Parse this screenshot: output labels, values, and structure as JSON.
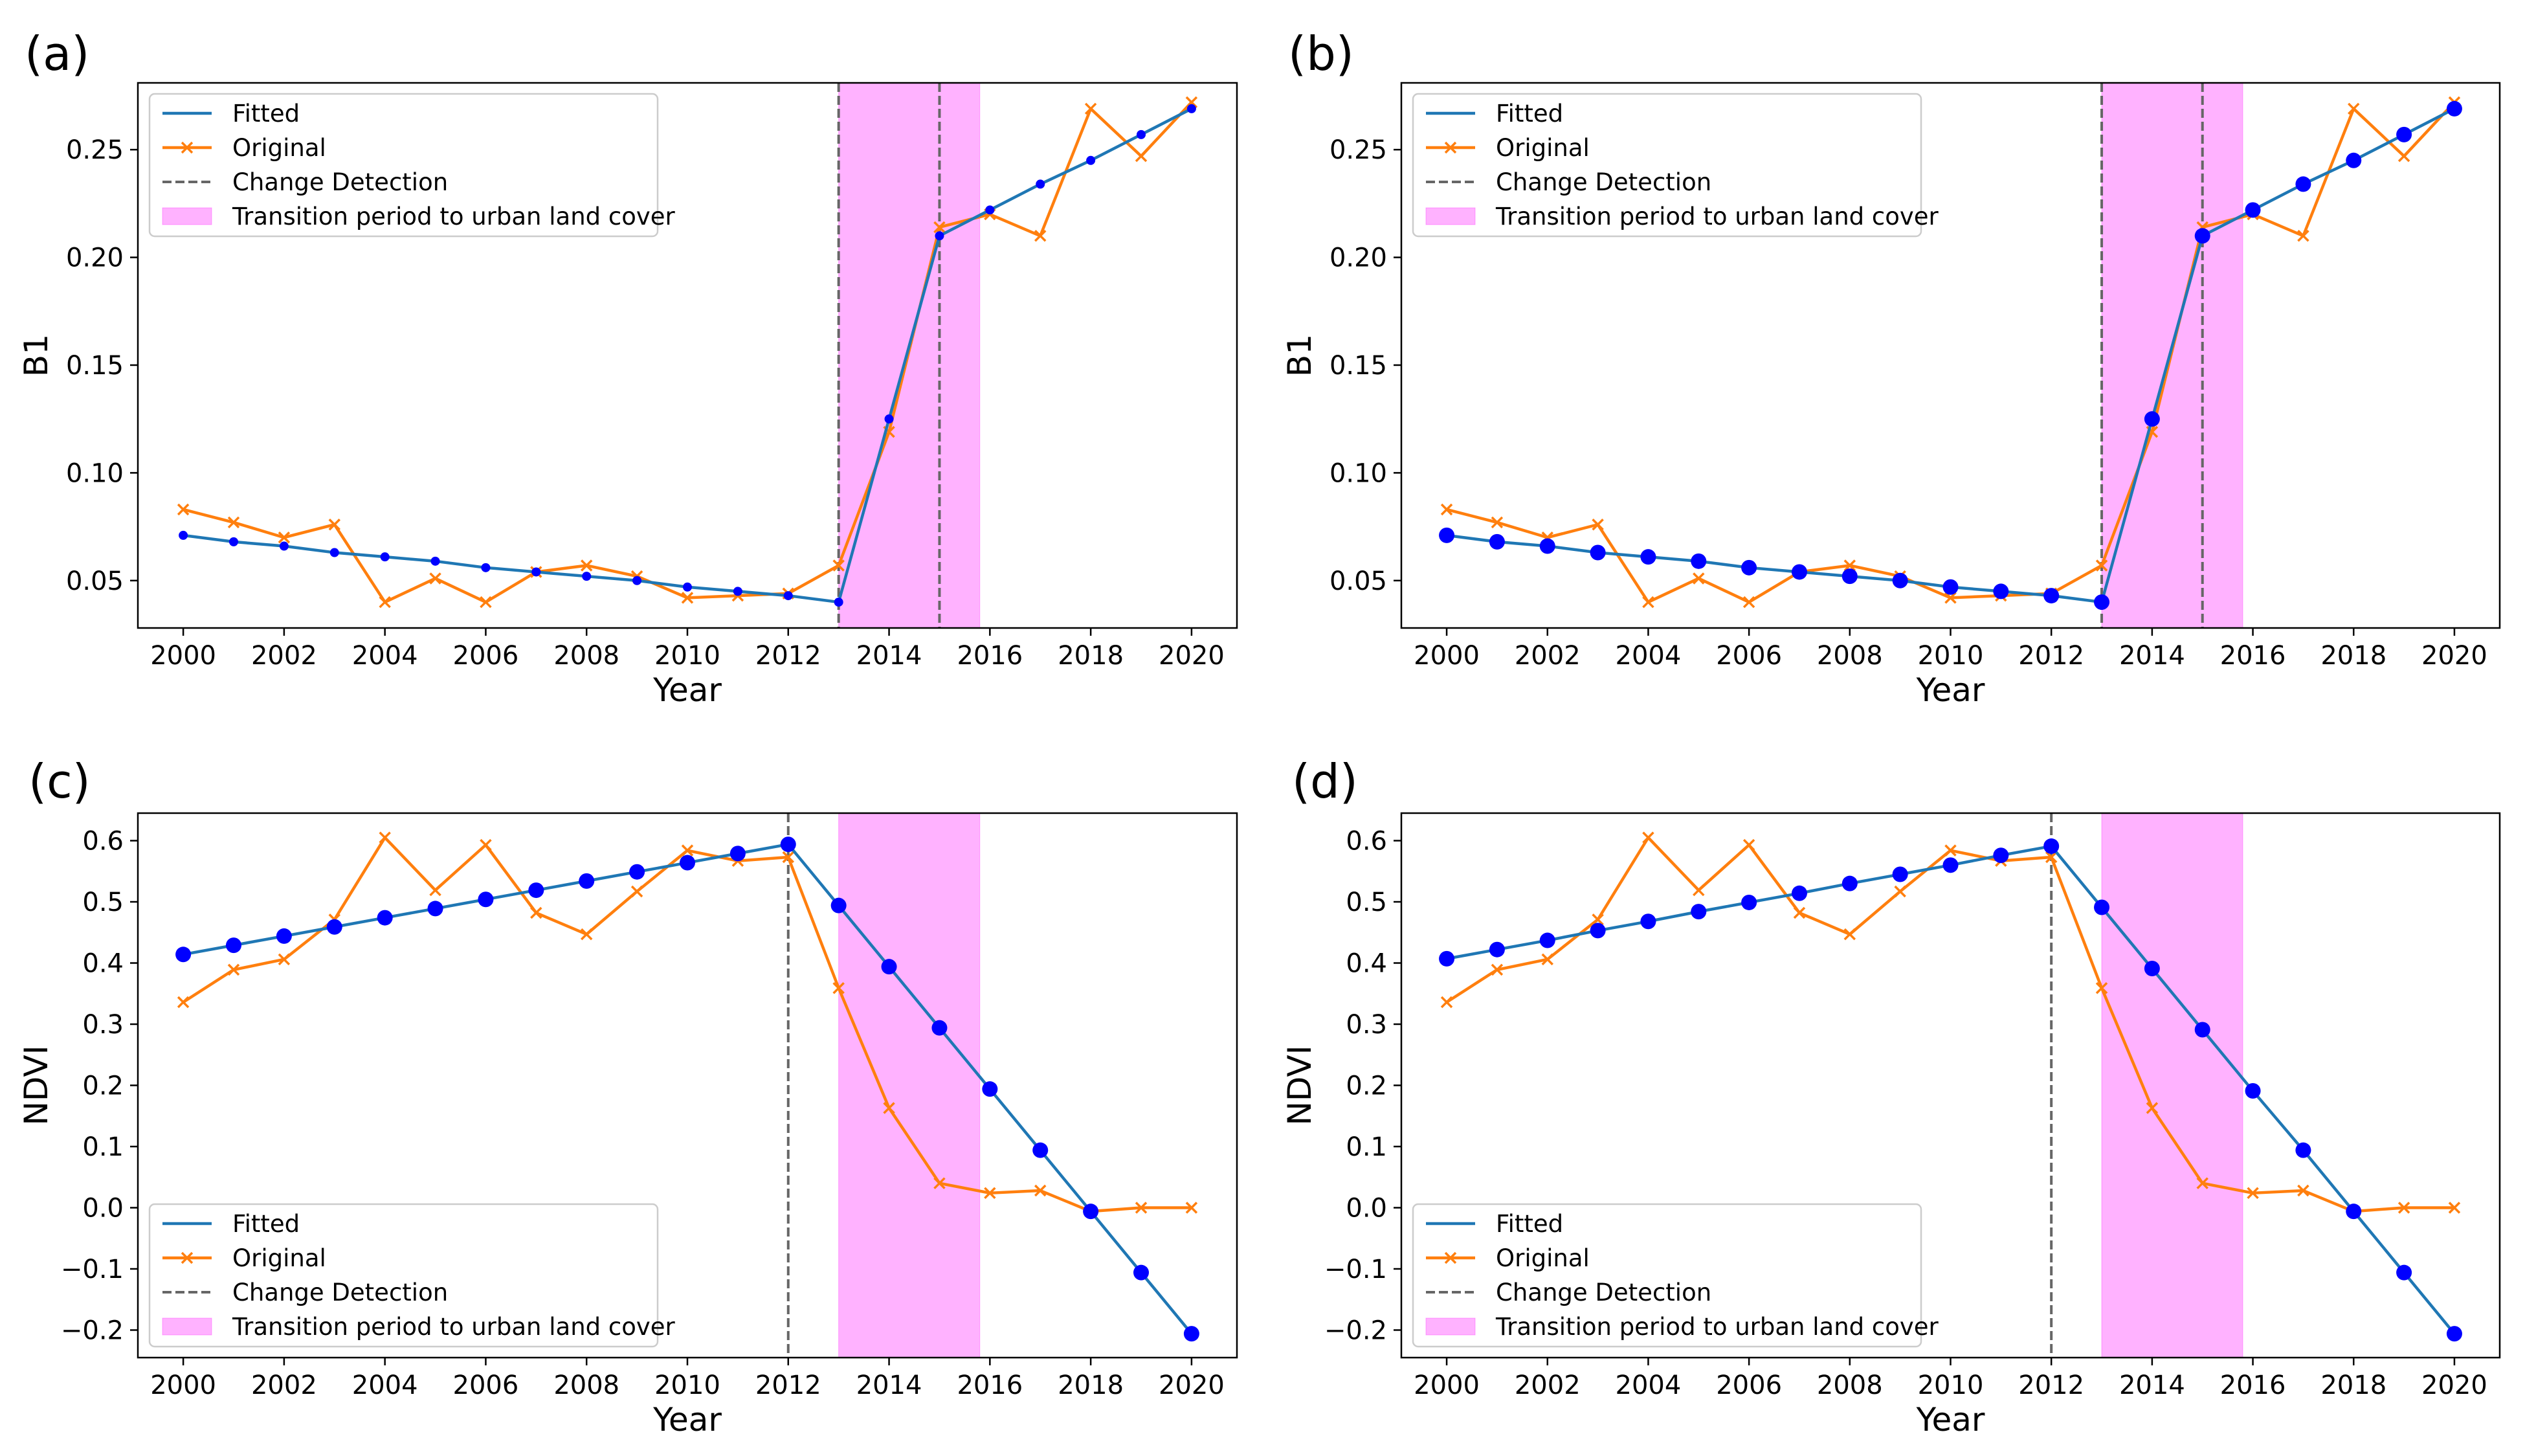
{
  "legend": {
    "fitted": "Fitted",
    "original": "Original",
    "change_detection": "Change Detection",
    "transition": "Transition period to urban land cover"
  },
  "colors": {
    "fitted": "#1f77b4",
    "original": "#ff7f0e",
    "fitted_marker": "#0000ff",
    "change_line": "#666666",
    "transition_fill": "#ff00ff"
  },
  "chart_data": [
    {
      "panel_label": "(a)",
      "type": "line",
      "xlabel": "Year",
      "ylabel": "B1",
      "xlim": [
        1999.1,
        2020.9
      ],
      "ylim": [
        0.028,
        0.281
      ],
      "xticks": [
        2000,
        2002,
        2004,
        2006,
        2008,
        2010,
        2012,
        2014,
        2016,
        2018,
        2020
      ],
      "yticks": [
        0.05,
        0.1,
        0.15,
        0.2,
        0.25
      ],
      "ytick_labels": [
        "0.05",
        "0.10",
        "0.15",
        "0.20",
        "0.25"
      ],
      "legend_position": "upper-left",
      "fitted_marker_size": "small",
      "x": [
        2000,
        2001,
        2002,
        2003,
        2004,
        2005,
        2006,
        2007,
        2008,
        2009,
        2010,
        2011,
        2012,
        2013,
        2014,
        2015,
        2016,
        2017,
        2018,
        2019,
        2020
      ],
      "series": [
        {
          "name": "Fitted",
          "values": [
            0.071,
            0.068,
            0.066,
            0.063,
            0.061,
            0.059,
            0.056,
            0.054,
            0.052,
            0.05,
            0.047,
            0.045,
            0.043,
            0.04,
            0.125,
            0.21,
            0.222,
            0.234,
            0.245,
            0.257,
            0.269
          ]
        },
        {
          "name": "Original",
          "values": [
            0.083,
            0.077,
            0.07,
            0.076,
            0.04,
            0.051,
            0.04,
            0.054,
            0.057,
            0.052,
            0.042,
            0.043,
            0.044,
            0.057,
            0.119,
            0.214,
            0.22,
            0.21,
            0.269,
            0.247,
            0.272
          ]
        }
      ],
      "change_detection": [
        2013,
        2015
      ],
      "transition_period": [
        2013,
        2015.8
      ]
    },
    {
      "panel_label": "(b)",
      "type": "line",
      "xlabel": "Year",
      "ylabel": "B1",
      "xlim": [
        1999.1,
        2020.9
      ],
      "ylim": [
        0.028,
        0.281
      ],
      "xticks": [
        2000,
        2002,
        2004,
        2006,
        2008,
        2010,
        2012,
        2014,
        2016,
        2018,
        2020
      ],
      "yticks": [
        0.05,
        0.1,
        0.15,
        0.2,
        0.25
      ],
      "ytick_labels": [
        "0.05",
        "0.10",
        "0.15",
        "0.20",
        "0.25"
      ],
      "legend_position": "upper-left",
      "fitted_marker_size": "large",
      "x": [
        2000,
        2001,
        2002,
        2003,
        2004,
        2005,
        2006,
        2007,
        2008,
        2009,
        2010,
        2011,
        2012,
        2013,
        2014,
        2015,
        2016,
        2017,
        2018,
        2019,
        2020
      ],
      "series": [
        {
          "name": "Fitted",
          "values": [
            0.071,
            0.068,
            0.066,
            0.063,
            0.061,
            0.059,
            0.056,
            0.054,
            0.052,
            0.05,
            0.047,
            0.045,
            0.043,
            0.04,
            0.125,
            0.21,
            0.222,
            0.234,
            0.245,
            0.257,
            0.269
          ]
        },
        {
          "name": "Original",
          "values": [
            0.083,
            0.077,
            0.07,
            0.076,
            0.04,
            0.051,
            0.04,
            0.054,
            0.057,
            0.052,
            0.042,
            0.043,
            0.044,
            0.057,
            0.119,
            0.214,
            0.22,
            0.21,
            0.269,
            0.247,
            0.272
          ]
        }
      ],
      "change_detection": [
        2013,
        2015
      ],
      "transition_period": [
        2013,
        2015.8
      ]
    },
    {
      "panel_label": "(c)",
      "type": "line",
      "xlabel": "Year",
      "ylabel": "NDVI",
      "xlim": [
        1999.1,
        2020.9
      ],
      "ylim": [
        -0.245,
        0.645
      ],
      "xticks": [
        2000,
        2002,
        2004,
        2006,
        2008,
        2010,
        2012,
        2014,
        2016,
        2018,
        2020
      ],
      "yticks": [
        -0.2,
        -0.1,
        0.0,
        0.1,
        0.2,
        0.3,
        0.4,
        0.5,
        0.6
      ],
      "ytick_labels": [
        "−0.2",
        "−0.1",
        "0.0",
        "0.1",
        "0.2",
        "0.3",
        "0.4",
        "0.5",
        "0.6"
      ],
      "legend_position": "lower-left",
      "fitted_marker_size": "large",
      "x": [
        2000,
        2001,
        2002,
        2003,
        2004,
        2005,
        2006,
        2007,
        2008,
        2009,
        2010,
        2011,
        2012,
        2013,
        2014,
        2015,
        2016,
        2017,
        2018,
        2019,
        2020
      ],
      "series": [
        {
          "name": "Fitted",
          "values": [
            0.414,
            0.429,
            0.444,
            0.459,
            0.474,
            0.489,
            0.504,
            0.519,
            0.534,
            0.549,
            0.564,
            0.579,
            0.594,
            0.494,
            0.394,
            0.294,
            0.194,
            0.094,
            -0.006,
            -0.106,
            -0.206
          ]
        },
        {
          "name": "Original",
          "values": [
            0.336,
            0.389,
            0.406,
            0.471,
            0.605,
            0.519,
            0.593,
            0.482,
            0.447,
            0.517,
            0.584,
            0.567,
            0.573,
            0.359,
            0.163,
            0.04,
            0.024,
            0.028,
            -0.006,
            0.0,
            0.0
          ]
        }
      ],
      "change_detection": [
        2012
      ],
      "transition_period": [
        2013,
        2015.8
      ]
    },
    {
      "panel_label": "(d)",
      "type": "line",
      "xlabel": "Year",
      "ylabel": "NDVI",
      "xlim": [
        1999.1,
        2020.9
      ],
      "ylim": [
        -0.245,
        0.645
      ],
      "xticks": [
        2000,
        2002,
        2004,
        2006,
        2008,
        2010,
        2012,
        2014,
        2016,
        2018,
        2020
      ],
      "yticks": [
        -0.2,
        -0.1,
        0.0,
        0.1,
        0.2,
        0.3,
        0.4,
        0.5,
        0.6
      ],
      "ytick_labels": [
        "−0.2",
        "−0.1",
        "0.0",
        "0.1",
        "0.2",
        "0.3",
        "0.4",
        "0.5",
        "0.6"
      ],
      "legend_position": "lower-left",
      "fitted_marker_size": "large",
      "x": [
        2000,
        2001,
        2002,
        2003,
        2004,
        2005,
        2006,
        2007,
        2008,
        2009,
        2010,
        2011,
        2012,
        2013,
        2014,
        2015,
        2016,
        2017,
        2018,
        2019,
        2020
      ],
      "series": [
        {
          "name": "Fitted",
          "values": [
            0.407,
            0.422,
            0.437,
            0.453,
            0.468,
            0.484,
            0.499,
            0.514,
            0.53,
            0.545,
            0.56,
            0.576,
            0.591,
            0.491,
            0.391,
            0.291,
            0.191,
            0.094,
            -0.006,
            -0.106,
            -0.206
          ]
        },
        {
          "name": "Original",
          "values": [
            0.336,
            0.389,
            0.406,
            0.471,
            0.605,
            0.519,
            0.593,
            0.482,
            0.447,
            0.517,
            0.584,
            0.567,
            0.573,
            0.359,
            0.163,
            0.04,
            0.024,
            0.028,
            -0.006,
            0.0,
            0.0
          ]
        }
      ],
      "change_detection": [
        2012
      ],
      "transition_period": [
        2013,
        2015.8
      ]
    }
  ]
}
